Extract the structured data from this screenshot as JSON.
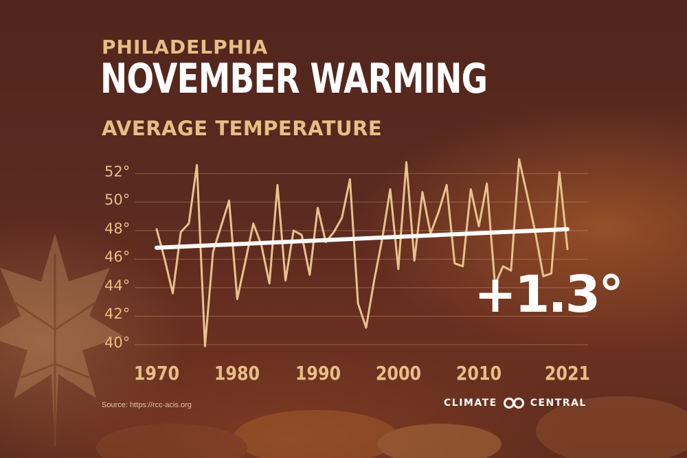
{
  "header": {
    "city": "PHILADELPHIA",
    "title": "NOVEMBER WARMING",
    "subtitle": "AVERAGE TEMPERATURE"
  },
  "chart_data": {
    "type": "line",
    "title": "NOVEMBER WARMING",
    "subtitle": "AVERAGE TEMPERATURE",
    "xlim": [
      1970,
      2021
    ],
    "ylim": [
      40,
      53
    ],
    "grid": true,
    "x_tick_labels": [
      "1970",
      "1980",
      "1990",
      "2000",
      "2010",
      "2021"
    ],
    "x_tick_values": [
      1970,
      1980,
      1990,
      2000,
      2010,
      2021
    ],
    "y_tick_labels": [
      "40°",
      "42°",
      "44°",
      "46°",
      "48°",
      "50°",
      "52°"
    ],
    "y_tick_values": [
      40,
      42,
      44,
      46,
      48,
      50,
      52
    ],
    "series": [
      {
        "color": "#e8c28c",
        "x": [
          1970,
          1971,
          1972,
          1973,
          1974,
          1975,
          1976,
          1977,
          1978,
          1979,
          1980,
          1981,
          1982,
          1983,
          1984,
          1985,
          1986,
          1987,
          1988,
          1989,
          1990,
          1991,
          1992,
          1993,
          1994,
          1995,
          1996,
          1997,
          1998,
          1999,
          2000,
          2001,
          2002,
          2003,
          2004,
          2005,
          2006,
          2007,
          2008,
          2009,
          2010,
          2011,
          2012,
          2013,
          2014,
          2015,
          2016,
          2017,
          2018,
          2019,
          2020,
          2021
        ],
        "values": [
          48.1,
          46.0,
          43.6,
          47.9,
          48.5,
          52.6,
          39.9,
          46.5,
          48.3,
          50.1,
          43.2,
          45.8,
          48.5,
          47.0,
          44.3,
          51.2,
          44.5,
          48.0,
          47.7,
          44.9,
          49.6,
          47.2,
          47.9,
          48.9,
          51.6,
          42.9,
          41.2,
          44.5,
          47.4,
          50.9,
          45.3,
          52.8,
          45.9,
          50.7,
          47.8,
          49.3,
          51.2,
          45.7,
          45.5,
          50.9,
          48.3,
          51.3,
          44.2,
          45.5,
          45.2,
          53.0,
          50.5,
          47.9,
          44.8,
          45.0,
          52.1,
          46.7
        ]
      },
      {
        "color": "#ffffff",
        "x": [
          1970,
          2021
        ],
        "values": [
          46.8,
          48.1
        ]
      }
    ],
    "annotations": [
      "+1.3°"
    ]
  },
  "annotation": "+1.3°",
  "source": "Source: https://rcc-acis.org",
  "brand": {
    "name_left": "CLIMATE",
    "name_right": "CENTRAL"
  }
}
